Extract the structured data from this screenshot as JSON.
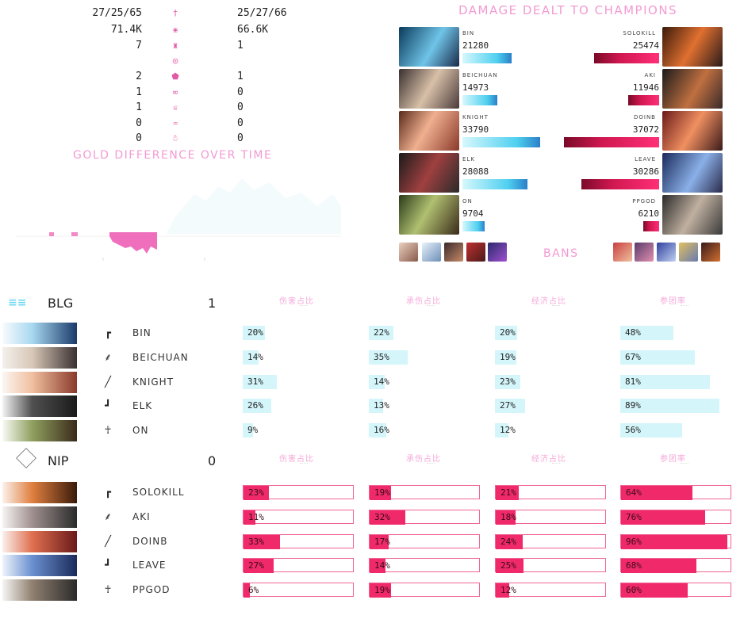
{
  "summary": {
    "rows": [
      {
        "left": "27/25/65",
        "right": "25/27/66",
        "icon": "sword-icon"
      },
      {
        "left": "71.4K",
        "right": "66.6K",
        "icon": "gold-icon"
      },
      {
        "left": "7",
        "right": "1",
        "icon": "tower-icon"
      },
      {
        "left": "",
        "right": "",
        "icon": "inhibitor-icon"
      },
      {
        "left": "2",
        "right": "1",
        "icon": "dragon-icon"
      },
      {
        "left": "1",
        "right": "0",
        "icon": "herald-icon"
      },
      {
        "left": "1",
        "right": "0",
        "icon": "baron-icon"
      },
      {
        "left": "0",
        "right": "0",
        "icon": "elder-icon"
      },
      {
        "left": "0",
        "right": "0",
        "icon": "shelly-icon"
      }
    ]
  },
  "gold_title": "GOLD DIFFERENCE OVER TIME",
  "damage": {
    "title": "DAMAGE DEALT TO CHAMPIONS",
    "rows": [
      {
        "left_name": "BIN",
        "left_value": "21280",
        "left_frac": 0.574,
        "right_name": "SOLOKILL",
        "right_value": "25474",
        "right_frac": 0.687
      },
      {
        "left_name": "BEICHUAN",
        "left_value": "14973",
        "left_frac": 0.404,
        "right_name": "AKI",
        "right_value": "11946",
        "right_frac": 0.322
      },
      {
        "left_name": "KNIGHT",
        "left_value": "33790",
        "left_frac": 0.911,
        "right_name": "DOINB",
        "right_value": "37072",
        "right_frac": 1.0
      },
      {
        "left_name": "ELK",
        "left_value": "28088",
        "left_frac": 0.758,
        "right_name": "LEAVE",
        "right_value": "30286",
        "right_frac": 0.817
      },
      {
        "left_name": "ON",
        "left_value": "9704",
        "left_frac": 0.262,
        "right_name": "PPGOD",
        "right_value": "6210",
        "right_frac": 0.168
      }
    ],
    "bans_label": "BANS"
  },
  "columns": [
    "伤害占比",
    "承伤占比",
    "经济占比",
    "参团率"
  ],
  "teams": [
    {
      "name": "BLG",
      "score": "1",
      "players": [
        {
          "role": "top-icon",
          "name": "BIN",
          "stats": [
            "20%",
            "22%",
            "20%",
            "48%"
          ],
          "vals": [
            0.2,
            0.22,
            0.2,
            0.48
          ]
        },
        {
          "role": "jungle-icon",
          "name": "BEICHUAN",
          "stats": [
            "14%",
            "35%",
            "19%",
            "67%"
          ],
          "vals": [
            0.14,
            0.35,
            0.19,
            0.67
          ]
        },
        {
          "role": "mid-icon",
          "name": "KNIGHT",
          "stats": [
            "31%",
            "14%",
            "23%",
            "81%"
          ],
          "vals": [
            0.31,
            0.14,
            0.23,
            0.81
          ]
        },
        {
          "role": "bot-icon",
          "name": "ELK",
          "stats": [
            "26%",
            "13%",
            "27%",
            "89%"
          ],
          "vals": [
            0.26,
            0.13,
            0.27,
            0.89
          ]
        },
        {
          "role": "support-icon",
          "name": "ON",
          "stats": [
            "9%",
            "16%",
            "12%",
            "56%"
          ],
          "vals": [
            0.09,
            0.16,
            0.12,
            0.56
          ]
        }
      ]
    },
    {
      "name": "NIP",
      "score": "0",
      "players": [
        {
          "role": "top-icon",
          "name": "SOLOKILL",
          "stats": [
            "23%",
            "19%",
            "21%",
            "64%"
          ],
          "vals": [
            0.23,
            0.19,
            0.21,
            0.64
          ]
        },
        {
          "role": "jungle-icon",
          "name": "AKI",
          "stats": [
            "11%",
            "32%",
            "18%",
            "76%"
          ],
          "vals": [
            0.11,
            0.32,
            0.18,
            0.76
          ]
        },
        {
          "role": "mid-icon",
          "name": "DOINB",
          "stats": [
            "33%",
            "17%",
            "24%",
            "96%"
          ],
          "vals": [
            0.33,
            0.17,
            0.24,
            0.96
          ]
        },
        {
          "role": "bot-icon",
          "name": "LEAVE",
          "stats": [
            "27%",
            "14%",
            "25%",
            "68%"
          ],
          "vals": [
            0.27,
            0.14,
            0.25,
            0.68
          ]
        },
        {
          "role": "support-icon",
          "name": "PPGOD",
          "stats": [
            "6%",
            "19%",
            "12%",
            "60%"
          ],
          "vals": [
            0.06,
            0.19,
            0.12,
            0.6
          ]
        }
      ]
    }
  ],
  "colors": {
    "blue_team": "#6fe3f2",
    "red_team": "#f02a6a",
    "title_pink": "#f39ad3"
  }
}
